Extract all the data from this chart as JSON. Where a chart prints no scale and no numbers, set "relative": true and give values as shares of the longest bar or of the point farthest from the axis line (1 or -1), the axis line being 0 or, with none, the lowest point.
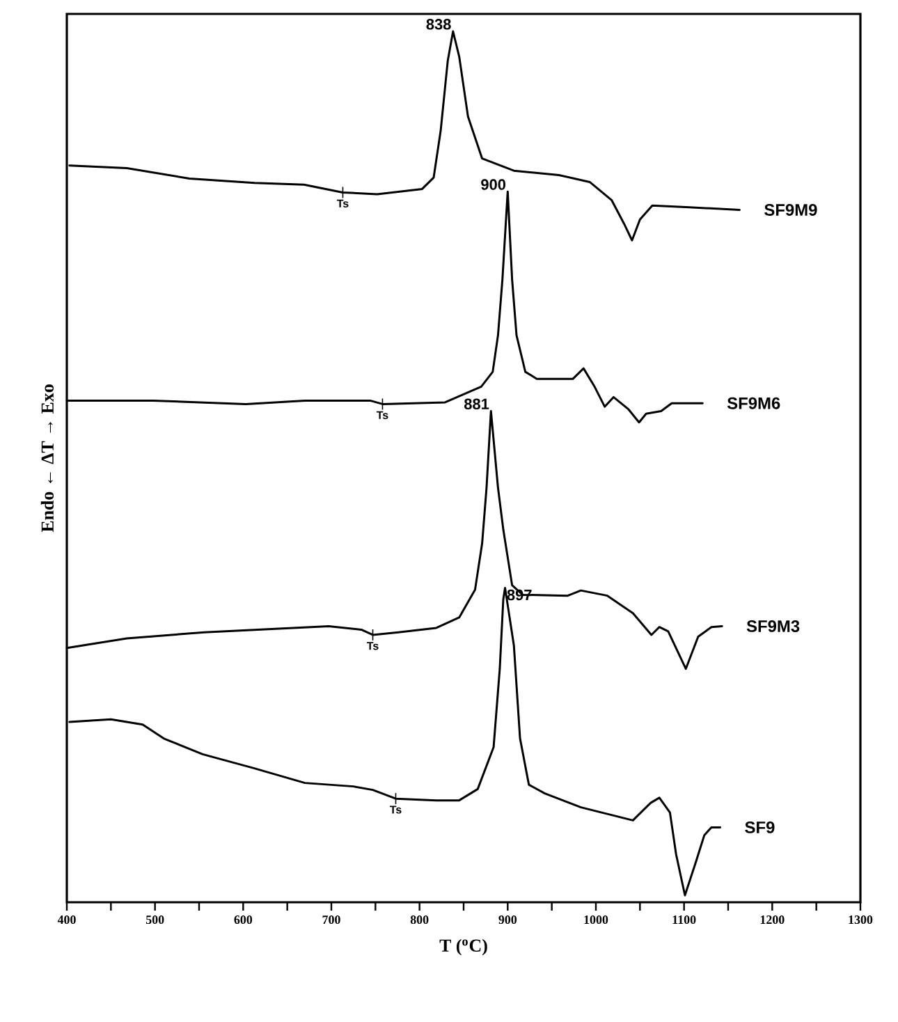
{
  "chart_data": {
    "type": "line",
    "relative": true,
    "xlabel": "T ($^{o}$C)",
    "ylabel": "Endo ← ΔT → Exo",
    "xlim": [
      400,
      1300
    ],
    "xticks": [
      400,
      {
        "value": 450,
        "label": null
      },
      500,
      {
        "value": 550,
        "label": null
      },
      600,
      {
        "value": 650,
        "label": null
      },
      700,
      {
        "value": 750,
        "label": null
      },
      800,
      {
        "value": 850,
        "label": null
      },
      900,
      {
        "value": 950,
        "label": null
      },
      1000,
      {
        "value": 1050,
        "label": null
      },
      1100,
      {
        "value": 1150,
        "label": null
      },
      1200,
      {
        "value": 1250,
        "label": null
      },
      1300
    ],
    "grid": false,
    "marker": "none",
    "line_style": "solid",
    "series": [
      {
        "name": "SF9M9",
        "color": "#000000",
        "x": [
          403,
          468,
          539,
          613,
          669,
          713,
          752,
          803,
          816,
          824,
          832,
          838,
          845,
          855,
          871,
          907,
          958,
          993,
          1018,
          1032,
          1041,
          1050,
          1064,
          1106,
          1163
        ],
        "values": [
          0.846,
          0.843,
          0.831,
          0.826,
          0.824,
          0.815,
          0.813,
          0.819,
          0.832,
          0.886,
          0.966,
          1.0,
          0.971,
          0.902,
          0.854,
          0.84,
          0.835,
          0.827,
          0.806,
          0.779,
          0.76,
          0.784,
          0.8,
          0.798,
          0.795
        ]
      },
      {
        "name": "SF9M6",
        "color": "#000000",
        "x": [
          400,
          498,
          603,
          670,
          744,
          758,
          829,
          870,
          883,
          889,
          894,
          900,
          905,
          910,
          920,
          933,
          974,
          986,
          998,
          1010,
          1020,
          1037,
          1049,
          1057,
          1074,
          1086,
          1121
        ],
        "values": [
          0.576,
          0.576,
          0.572,
          0.576,
          0.576,
          0.572,
          0.574,
          0.592,
          0.609,
          0.651,
          0.715,
          0.816,
          0.715,
          0.651,
          0.609,
          0.601,
          0.601,
          0.613,
          0.593,
          0.569,
          0.58,
          0.566,
          0.551,
          0.561,
          0.564,
          0.573,
          0.573
        ]
      },
      {
        "name": "SF9M3",
        "color": "#000000",
        "x": [
          400,
          468,
          556,
          697,
          734,
          747,
          776,
          819,
          845,
          863,
          871,
          876,
          881,
          889,
          895,
          905,
          917,
          968,
          983,
          1013,
          1042,
          1063,
          1072,
          1082,
          1102,
          1116,
          1131,
          1143
        ],
        "values": [
          0.292,
          0.303,
          0.31,
          0.317,
          0.313,
          0.307,
          0.31,
          0.315,
          0.327,
          0.359,
          0.412,
          0.476,
          0.564,
          0.476,
          0.428,
          0.364,
          0.353,
          0.352,
          0.358,
          0.352,
          0.332,
          0.307,
          0.316,
          0.311,
          0.268,
          0.305,
          0.316,
          0.317
        ]
      },
      {
        "name": "SF9",
        "color": "#000000",
        "x": [
          403,
          450,
          486,
          510,
          554,
          612,
          670,
          725,
          747,
          773,
          819,
          845,
          866,
          884,
          891,
          895,
          897,
          907,
          914,
          924,
          942,
          983,
          1042,
          1062,
          1072,
          1084,
          1091,
          1101,
          1113,
          1123,
          1131,
          1141
        ],
        "values": [
          0.207,
          0.21,
          0.204,
          0.188,
          0.17,
          0.154,
          0.137,
          0.133,
          0.129,
          0.119,
          0.117,
          0.117,
          0.13,
          0.178,
          0.268,
          0.348,
          0.361,
          0.295,
          0.188,
          0.135,
          0.125,
          0.109,
          0.094,
          0.114,
          0.12,
          0.103,
          0.055,
          0.008,
          0.045,
          0.077,
          0.086,
          0.086
        ]
      }
    ],
    "annotations": [
      {
        "text": "838",
        "x": 838,
        "y": 1.0
      },
      {
        "text": "900",
        "x": 900,
        "y": 0.816
      },
      {
        "text": "881",
        "x": 881,
        "y": 0.564
      },
      {
        "text": "897",
        "x": 897,
        "y": 0.361
      },
      {
        "text": "Ts",
        "x": 713,
        "y": 0.815
      },
      {
        "text": "Ts",
        "x": 758,
        "y": 0.572
      },
      {
        "text": "Ts",
        "x": 747,
        "y": 0.307
      },
      {
        "text": "Ts",
        "x": 773,
        "y": 0.119
      }
    ]
  }
}
